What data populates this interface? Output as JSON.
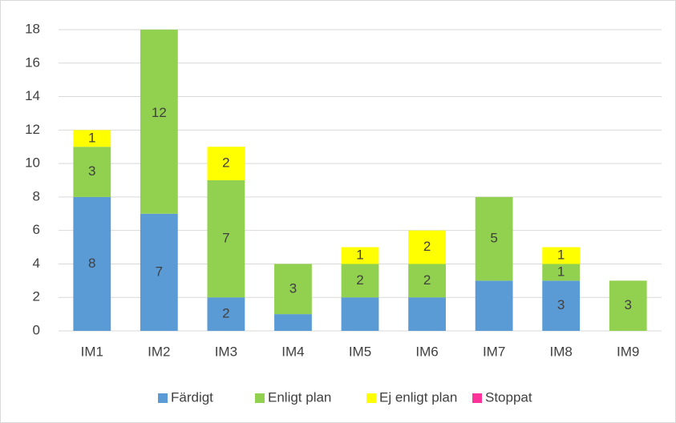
{
  "chart_data": {
    "type": "stacked-bar",
    "categories": [
      "IM1",
      "IM2",
      "IM3",
      "IM4",
      "IM5",
      "IM6",
      "IM7",
      "IM8",
      "IM9"
    ],
    "series": [
      {
        "name": "Färdigt",
        "color": "#5b9bd5",
        "values": [
          8,
          7,
          2,
          1,
          2,
          2,
          3,
          3,
          0
        ],
        "value_labels": [
          "8",
          "7",
          "2",
          null,
          null,
          null,
          null,
          "3",
          null
        ]
      },
      {
        "name": "Enligt plan",
        "color": "#92d050",
        "values": [
          3,
          12,
          7,
          3,
          2,
          2,
          5,
          1,
          3
        ],
        "value_labels": [
          "3",
          "12",
          "7",
          "3",
          "2",
          "2",
          "5",
          "1",
          "3"
        ]
      },
      {
        "name": "Ej enligt plan",
        "color": "#ffff00",
        "values": [
          1,
          0,
          2,
          0,
          1,
          2,
          0,
          1,
          0
        ],
        "value_labels": [
          "1",
          null,
          "2",
          null,
          "1",
          "2",
          null,
          "1",
          null
        ]
      },
      {
        "name": "Stoppat",
        "color": "#ff3399",
        "values": [
          0,
          0,
          0,
          0,
          0,
          0,
          0,
          0,
          0
        ]
      }
    ],
    "ylim": [
      0,
      18
    ],
    "yticks": [
      0,
      2,
      4,
      6,
      8,
      10,
      12,
      14,
      16,
      18
    ],
    "grid": true,
    "legend": "bottom"
  }
}
